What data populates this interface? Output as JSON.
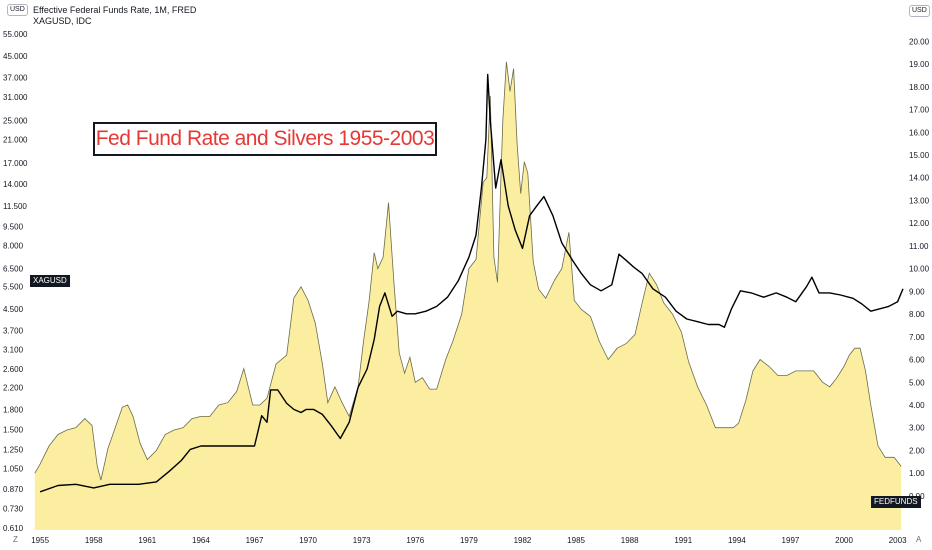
{
  "header": {
    "series1_label": "Effective Federal Funds Rate, 1M, FRED",
    "series2_label": "XAGUSD, IDC",
    "left_unit": "USD",
    "right_unit": "USD"
  },
  "title": "Fed Fund Rate and Silvers 1955-2003",
  "tags": {
    "xagusd": "XAGUSD",
    "fedfunds": "FEDFUNDS"
  },
  "corners": {
    "bottom_left": "Z",
    "bottom_right": "A"
  },
  "colors": {
    "fedfunds_fill": "#fbeea0",
    "fedfunds_line": "#6b6b4a",
    "xagusd_line": "#000000",
    "title_color": "#e53935"
  },
  "chart_data": {
    "type": "line",
    "title": "Fed Fund Rate and Silvers 1955-2003",
    "x_tick_labels": [
      "1955",
      "1958",
      "1961",
      "1964",
      "1967",
      "1970",
      "1973",
      "1976",
      "1979",
      "1982",
      "1985",
      "1988",
      "1991",
      "1994",
      "1997",
      "2000",
      "2003"
    ],
    "xlim": [
      1954.6,
      2003.3
    ],
    "left_axis": {
      "scale": "log",
      "unit": "USD",
      "tick_labels": [
        "55.000",
        "45.000",
        "37.000",
        "31.000",
        "25.000",
        "21.000",
        "17.000",
        "14.000",
        "11.500",
        "9.500",
        "8.000",
        "6.500",
        "5.500",
        "4.500",
        "3.700",
        "3.100",
        "2.600",
        "2.200",
        "1.800",
        "1.500",
        "1.250",
        "1.050",
        "0.870",
        "0.730",
        "0.610"
      ],
      "ylim": [
        0.6,
        57
      ]
    },
    "right_axis": {
      "scale": "linear",
      "unit": "USD",
      "tick_labels": [
        "20.00",
        "19.00",
        "18.00",
        "17.00",
        "16.00",
        "15.00",
        "14.00",
        "13.00",
        "12.00",
        "11.00",
        "10.00",
        "9.00",
        "8.00",
        "7.00",
        "6.00",
        "5.00",
        "4.00",
        "3.00",
        "2.00",
        "1.00",
        "0.00"
      ],
      "ylim": [
        -1.5,
        20.5
      ]
    },
    "series": [
      {
        "name": "FEDFUNDS",
        "axis": "right",
        "style": "area",
        "x": [
          1954.7,
          1955.0,
          1955.5,
          1956.0,
          1956.5,
          1957.0,
          1957.5,
          1957.9,
          1958.2,
          1958.4,
          1958.8,
          1959.2,
          1959.6,
          1959.9,
          1960.2,
          1960.6,
          1961.0,
          1961.5,
          1962.0,
          1962.5,
          1963.0,
          1963.5,
          1964.0,
          1964.5,
          1965.0,
          1965.5,
          1966.0,
          1966.4,
          1966.9,
          1967.3,
          1967.7,
          1968.2,
          1968.8,
          1969.2,
          1969.6,
          1970.0,
          1970.4,
          1970.8,
          1971.1,
          1971.5,
          1971.9,
          1972.3,
          1972.8,
          1973.1,
          1973.4,
          1973.7,
          1973.9,
          1974.2,
          1974.5,
          1974.8,
          1975.1,
          1975.4,
          1975.7,
          1976.0,
          1976.4,
          1976.8,
          1977.2,
          1977.7,
          1978.1,
          1978.6,
          1979.0,
          1979.4,
          1979.8,
          1980.0,
          1980.2,
          1980.4,
          1980.6,
          1980.9,
          1981.1,
          1981.3,
          1981.5,
          1981.7,
          1981.9,
          1982.1,
          1982.3,
          1982.6,
          1982.9,
          1983.3,
          1983.8,
          1984.2,
          1984.6,
          1984.9,
          1985.3,
          1985.8,
          1986.3,
          1986.8,
          1987.3,
          1987.8,
          1988.3,
          1988.7,
          1989.1,
          1989.5,
          1989.9,
          1990.4,
          1990.9,
          1991.3,
          1991.8,
          1992.3,
          1992.8,
          1993.3,
          1993.8,
          1994.1,
          1994.5,
          1994.9,
          1995.3,
          1995.8,
          1996.3,
          1996.8,
          1997.3,
          1997.8,
          1998.3,
          1998.8,
          1999.2,
          1999.6,
          2000.0,
          2000.3,
          2000.6,
          2000.9,
          2001.2,
          2001.5,
          2001.9,
          2002.3,
          2002.8,
          2003.2
        ],
        "values": [
          1.0,
          1.4,
          2.2,
          2.7,
          2.9,
          3.0,
          3.4,
          3.1,
          1.3,
          0.7,
          2.1,
          3.0,
          3.9,
          4.0,
          3.5,
          2.3,
          1.6,
          2.0,
          2.7,
          2.9,
          3.0,
          3.4,
          3.5,
          3.5,
          4.0,
          4.1,
          4.6,
          5.6,
          4.0,
          4.0,
          4.3,
          5.8,
          6.2,
          8.7,
          9.2,
          8.6,
          7.6,
          5.8,
          4.1,
          4.8,
          4.1,
          3.5,
          4.8,
          6.8,
          8.5,
          10.7,
          10.0,
          10.5,
          12.9,
          9.4,
          6.3,
          5.4,
          6.1,
          5.0,
          5.2,
          4.7,
          4.7,
          6.0,
          6.8,
          8.0,
          10.0,
          10.4,
          13.8,
          14.0,
          17.6,
          10.5,
          9.4,
          16.5,
          19.1,
          17.8,
          18.8,
          15.5,
          13.3,
          14.7,
          14.2,
          10.3,
          9.1,
          8.7,
          9.5,
          10.0,
          11.6,
          8.6,
          8.2,
          7.9,
          6.8,
          6.0,
          6.5,
          6.7,
          7.1,
          8.5,
          9.8,
          9.3,
          8.5,
          8.0,
          7.2,
          5.9,
          4.8,
          4.0,
          3.0,
          3.0,
          3.0,
          3.2,
          4.2,
          5.5,
          6.0,
          5.7,
          5.3,
          5.3,
          5.5,
          5.5,
          5.5,
          5.0,
          4.8,
          5.2,
          5.7,
          6.2,
          6.5,
          6.5,
          5.5,
          4.0,
          2.2,
          1.7,
          1.7,
          1.3
        ]
      },
      {
        "name": "XAGUSD",
        "axis": "left",
        "style": "line",
        "x": [
          1955.0,
          1956.0,
          1957.0,
          1958.0,
          1958.9,
          1959.5,
          1960.5,
          1961.5,
          1962.2,
          1962.9,
          1963.4,
          1964.0,
          1965.0,
          1966.0,
          1967.0,
          1967.4,
          1967.7,
          1967.9,
          1968.3,
          1968.8,
          1969.2,
          1969.6,
          1969.9,
          1970.3,
          1970.8,
          1971.3,
          1971.8,
          1972.3,
          1972.8,
          1973.3,
          1973.7,
          1974.0,
          1974.3,
          1974.7,
          1975.0,
          1975.5,
          1976.0,
          1976.6,
          1977.2,
          1977.8,
          1978.4,
          1979.0,
          1979.4,
          1979.7,
          1979.95,
          1980.05,
          1980.2,
          1980.5,
          1980.8,
          1981.2,
          1981.6,
          1982.0,
          1982.4,
          1982.8,
          1983.2,
          1983.7,
          1984.2,
          1984.8,
          1985.3,
          1985.8,
          1986.4,
          1987.0,
          1987.4,
          1987.8,
          1988.2,
          1988.7,
          1989.3,
          1990.0,
          1990.6,
          1991.2,
          1991.8,
          1992.4,
          1993.0,
          1993.3,
          1993.7,
          1994.2,
          1994.8,
          1995.5,
          1996.2,
          1996.8,
          1997.3,
          1997.9,
          1998.2,
          1998.6,
          1999.2,
          1999.8,
          2000.5,
          2001.0,
          2001.5,
          2002.0,
          2002.5,
          2003.0,
          2003.3
        ],
        "values": [
          0.85,
          0.9,
          0.91,
          0.88,
          0.91,
          0.91,
          0.91,
          0.93,
          1.02,
          1.13,
          1.25,
          1.29,
          1.29,
          1.29,
          1.29,
          1.7,
          1.6,
          2.15,
          2.15,
          1.9,
          1.8,
          1.75,
          1.8,
          1.8,
          1.72,
          1.55,
          1.38,
          1.6,
          2.2,
          2.6,
          3.4,
          4.6,
          5.2,
          4.2,
          4.4,
          4.3,
          4.3,
          4.4,
          4.6,
          5.0,
          5.8,
          7.2,
          8.8,
          13.5,
          21.0,
          38.0,
          25.0,
          13.5,
          17.5,
          11.5,
          9.2,
          7.8,
          10.5,
          11.5,
          12.5,
          10.5,
          8.2,
          7.0,
          6.2,
          5.6,
          5.3,
          5.6,
          7.4,
          7.0,
          6.6,
          6.2,
          5.4,
          5.0,
          4.4,
          4.1,
          4.0,
          3.9,
          3.9,
          3.8,
          4.5,
          5.3,
          5.2,
          5.0,
          5.2,
          5.0,
          4.8,
          5.5,
          6.0,
          5.2,
          5.2,
          5.1,
          4.95,
          4.7,
          4.4,
          4.5,
          4.6,
          4.8,
          5.4
        ]
      }
    ]
  }
}
